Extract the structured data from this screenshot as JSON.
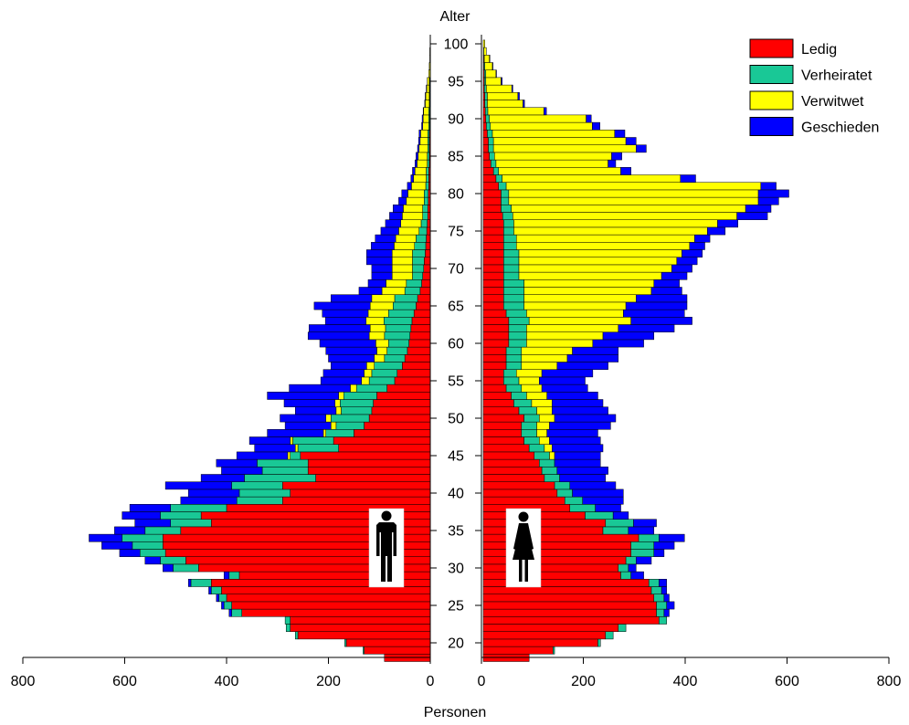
{
  "chart_data": {
    "type": "bar",
    "title": "",
    "age_label": "Alter",
    "xlabel": "Personen",
    "age_range": [
      18,
      101
    ],
    "age_ticks": [
      20,
      25,
      30,
      35,
      40,
      45,
      50,
      55,
      60,
      65,
      70,
      75,
      80,
      85,
      90,
      95,
      100
    ],
    "xlim": [
      0,
      800
    ],
    "x_ticks": [
      0,
      200,
      400,
      600,
      800
    ],
    "x_tick_labels": [
      "0",
      "200",
      "400",
      "600",
      "800"
    ],
    "legend_position": "top-right",
    "series": [
      {
        "name": "Ledig",
        "color": "#ff0000"
      },
      {
        "name": "Verheiratet",
        "color": "#19c896"
      },
      {
        "name": "Verwitwet",
        "color": "#ffff00"
      },
      {
        "name": "Geschieden",
        "color": "#0000ff"
      }
    ],
    "panels": [
      {
        "side": "left",
        "group": "Männer",
        "icon": "male-silhouette-icon",
        "ages": [
          18,
          19,
          20,
          21,
          22,
          23,
          24,
          25,
          26,
          27,
          28,
          29,
          30,
          31,
          32,
          33,
          34,
          35,
          36,
          37,
          38,
          39,
          40,
          41,
          42,
          43,
          44,
          45,
          46,
          47,
          48,
          49,
          50,
          51,
          52,
          53,
          54,
          55,
          56,
          57,
          58,
          59,
          60,
          61,
          62,
          63,
          64,
          65,
          66,
          67,
          68,
          69,
          70,
          71,
          72,
          73,
          74,
          75,
          76,
          77,
          78,
          79,
          80,
          81,
          82,
          83,
          84,
          85,
          86,
          87,
          88,
          89,
          90,
          91,
          92,
          93,
          94,
          95,
          96,
          97,
          98,
          99,
          100
        ],
        "Ledig": [
          90,
          130,
          165,
          260,
          275,
          275,
          370,
          390,
          400,
          410,
          430,
          375,
          455,
          480,
          520,
          525,
          525,
          490,
          430,
          450,
          400,
          290,
          275,
          290,
          225,
          240,
          240,
          255,
          180,
          190,
          150,
          130,
          120,
          115,
          112,
          105,
          85,
          70,
          65,
          55,
          50,
          45,
          42,
          40,
          38,
          36,
          32,
          28,
          25,
          20,
          17,
          15,
          13,
          12,
          10,
          9,
          8,
          7,
          6,
          5,
          5,
          4,
          4,
          3,
          3,
          3,
          2,
          2,
          2,
          2,
          2,
          1,
          1,
          1,
          1,
          1,
          1,
          1,
          0,
          0,
          0,
          0,
          0
        ],
        "Verheiratet": [
          0,
          2,
          3,
          5,
          8,
          10,
          20,
          15,
          15,
          20,
          40,
          20,
          50,
          50,
          50,
          60,
          80,
          70,
          80,
          80,
          110,
          90,
          100,
          100,
          140,
          90,
          100,
          20,
          80,
          80,
          55,
          55,
          75,
          60,
          65,
          65,
          60,
          50,
          50,
          55,
          40,
          40,
          40,
          50,
          50,
          55,
          50,
          45,
          45,
          30,
          30,
          20,
          22,
          23,
          25,
          22,
          20,
          15,
          12,
          10,
          10,
          8,
          8,
          6,
          5,
          5,
          4,
          4,
          3,
          3,
          3,
          2,
          2,
          2,
          1,
          1,
          1,
          1,
          0,
          0,
          0,
          0,
          0
        ],
        "Verwitwet": [
          0,
          0,
          0,
          0,
          0,
          0,
          0,
          0,
          0,
          0,
          0,
          0,
          0,
          0,
          0,
          0,
          0,
          0,
          0,
          0,
          0,
          0,
          0,
          0,
          0,
          0,
          0,
          5,
          5,
          5,
          5,
          10,
          10,
          10,
          10,
          10,
          12,
          15,
          15,
          15,
          20,
          20,
          25,
          30,
          30,
          35,
          40,
          45,
          45,
          45,
          40,
          40,
          40,
          40,
          40,
          40,
          40,
          40,
          40,
          40,
          38,
          35,
          32,
          28,
          25,
          22,
          20,
          18,
          17,
          15,
          14,
          12,
          11,
          10,
          8,
          7,
          5,
          4,
          3,
          2,
          1,
          1,
          0
        ],
        "Geschieden": [
          0,
          0,
          0,
          0,
          0,
          0,
          5,
          5,
          5,
          5,
          5,
          10,
          20,
          30,
          40,
          60,
          65,
          60,
          70,
          75,
          80,
          110,
          100,
          130,
          85,
          80,
          80,
          100,
          80,
          80,
          110,
          90,
          90,
          80,
          100,
          140,
          120,
          80,
          80,
          70,
          90,
          100,
          110,
          120,
          120,
          80,
          90,
          110,
          80,
          45,
          35,
          40,
          40,
          50,
          50,
          45,
          40,
          35,
          30,
          25,
          20,
          15,
          12,
          8,
          5,
          5,
          4,
          4,
          3,
          3,
          3,
          2,
          2,
          1,
          1,
          1,
          1,
          0,
          0,
          0,
          0,
          0,
          0
        ]
      },
      {
        "side": "right",
        "group": "Frauen",
        "icon": "female-silhouette-icon",
        "ages": [
          18,
          19,
          20,
          21,
          22,
          23,
          24,
          25,
          26,
          27,
          28,
          29,
          30,
          31,
          32,
          33,
          34,
          35,
          36,
          37,
          38,
          39,
          40,
          41,
          42,
          43,
          44,
          45,
          46,
          47,
          48,
          49,
          50,
          51,
          52,
          53,
          54,
          55,
          56,
          57,
          58,
          59,
          60,
          61,
          62,
          63,
          64,
          65,
          66,
          67,
          68,
          69,
          70,
          71,
          72,
          73,
          74,
          75,
          76,
          77,
          78,
          79,
          80,
          81,
          82,
          83,
          84,
          85,
          86,
          87,
          88,
          89,
          90,
          91,
          92,
          93,
          94,
          95,
          96,
          97,
          98,
          99,
          100
        ],
        "Ledig": [
          90,
          137,
          225,
          240,
          265,
          345,
          340,
          340,
          335,
          330,
          325,
          270,
          265,
          280,
          290,
          290,
          305,
          235,
          240,
          200,
          170,
          160,
          145,
          140,
          120,
          115,
          110,
          100,
          90,
          80,
          75,
          75,
          80,
          70,
          60,
          55,
          45,
          40,
          40,
          45,
          45,
          45,
          50,
          50,
          50,
          50,
          45,
          40,
          40,
          40,
          40,
          40,
          40,
          40,
          40,
          40,
          40,
          40,
          40,
          38,
          35,
          35,
          35,
          30,
          25,
          20,
          15,
          12,
          10,
          10,
          8,
          6,
          5,
          4,
          3,
          3,
          2,
          2,
          2,
          1,
          1,
          0,
          0
        ],
        "Verheiratet": [
          0,
          3,
          5,
          15,
          15,
          15,
          15,
          20,
          20,
          20,
          20,
          20,
          20,
          20,
          45,
          45,
          40,
          50,
          55,
          55,
          50,
          35,
          30,
          30,
          30,
          30,
          30,
          30,
          30,
          30,
          30,
          30,
          30,
          35,
          35,
          30,
          30,
          30,
          25,
          30,
          30,
          30,
          35,
          35,
          35,
          40,
          40,
          40,
          40,
          40,
          40,
          30,
          30,
          30,
          30,
          25,
          25,
          20,
          20,
          20,
          20,
          15,
          15,
          15,
          12,
          10,
          10,
          10,
          10,
          10,
          10,
          8,
          7,
          5,
          5,
          5,
          4,
          3,
          3,
          2,
          1,
          1,
          0
        ],
        "Verwitwet": [
          0,
          0,
          0,
          0,
          0,
          0,
          0,
          0,
          0,
          0,
          0,
          0,
          0,
          0,
          0,
          0,
          0,
          0,
          0,
          0,
          0,
          0,
          0,
          0,
          0,
          0,
          0,
          10,
          15,
          20,
          20,
          25,
          30,
          30,
          40,
          40,
          40,
          40,
          50,
          70,
          90,
          100,
          130,
          150,
          180,
          200,
          190,
          200,
          220,
          250,
          255,
          280,
          300,
          310,
          320,
          340,
          350,
          380,
          400,
          440,
          460,
          490,
          490,
          500,
          350,
          240,
          220,
          230,
          280,
          260,
          240,
          200,
          190,
          110,
          70,
          60,
          50,
          30,
          20,
          15,
          10,
          5,
          3
        ],
        "Geschieden": [
          0,
          0,
          0,
          0,
          0,
          0,
          10,
          15,
          10,
          10,
          15,
          25,
          15,
          30,
          20,
          40,
          50,
          50,
          45,
          30,
          50,
          80,
          100,
          90,
          90,
          100,
          90,
          90,
          100,
          100,
          100,
          120,
          120,
          110,
          100,
          100,
          90,
          90,
          100,
          100,
          100,
          90,
          100,
          100,
          110,
          120,
          120,
          120,
          100,
          60,
          50,
          50,
          40,
          40,
          40,
          30,
          30,
          35,
          40,
          60,
          50,
          40,
          60,
          30,
          30,
          20,
          15,
          20,
          20,
          20,
          20,
          15,
          10,
          5,
          3,
          3,
          2,
          2,
          1,
          1,
          1,
          0,
          0
        ]
      }
    ]
  }
}
